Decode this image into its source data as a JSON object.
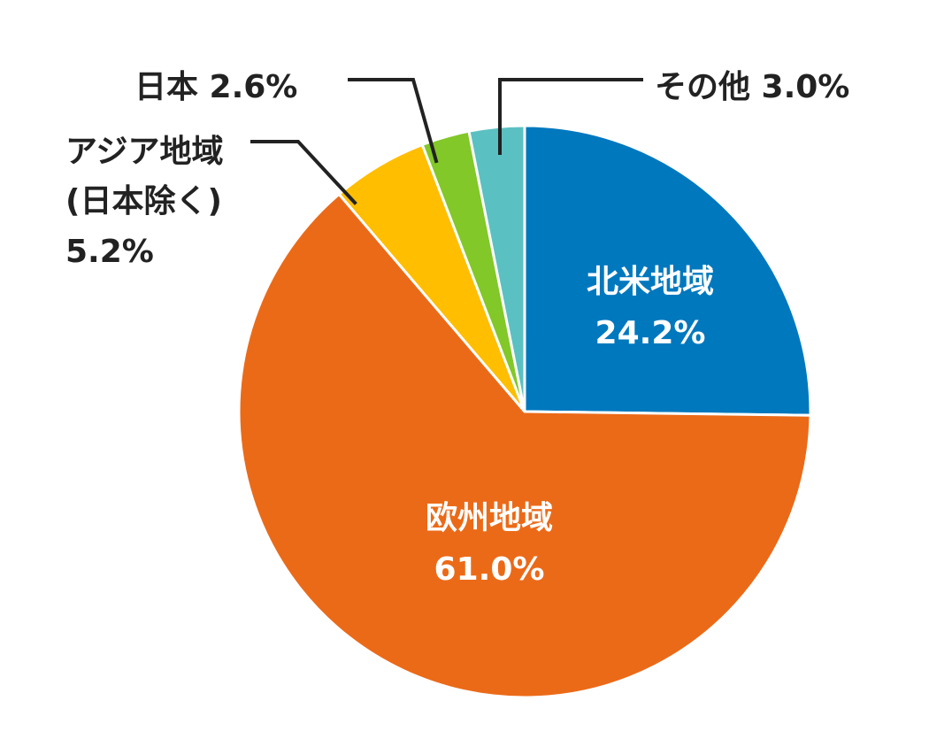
{
  "chart_data": {
    "type": "pie",
    "start_angle_deg": 0,
    "direction": "clockwise",
    "slices": [
      {
        "id": "north-america",
        "name": "北米地域",
        "value": 24.2,
        "value_label": "24.2%",
        "color": "#0078BE",
        "label_lines": [
          "北米地域",
          "24.2%"
        ]
      },
      {
        "id": "europe",
        "name": "欧州地域",
        "value": 61.0,
        "value_label": "61.0%",
        "color": "#EB6A18",
        "label_lines": [
          "欧州地域",
          "61.0%"
        ]
      },
      {
        "id": "asia-ex-japan",
        "name": "アジア地域(日本除く)",
        "value": 5.2,
        "value_label": "5.2%",
        "color": "#FFBE00",
        "label_lines": [
          "アジア地域",
          "(日本除く)",
          "5.2%"
        ]
      },
      {
        "id": "japan",
        "name": "日本",
        "value": 2.6,
        "value_label": "2.6%",
        "color": "#82C828",
        "label_lines": [
          "日本 2.6%"
        ]
      },
      {
        "id": "other",
        "name": "その他",
        "value": 3.0,
        "value_label": "3.0%",
        "color": "#5BC0C1",
        "label_lines": [
          "その他 3.0%"
        ]
      }
    ]
  }
}
